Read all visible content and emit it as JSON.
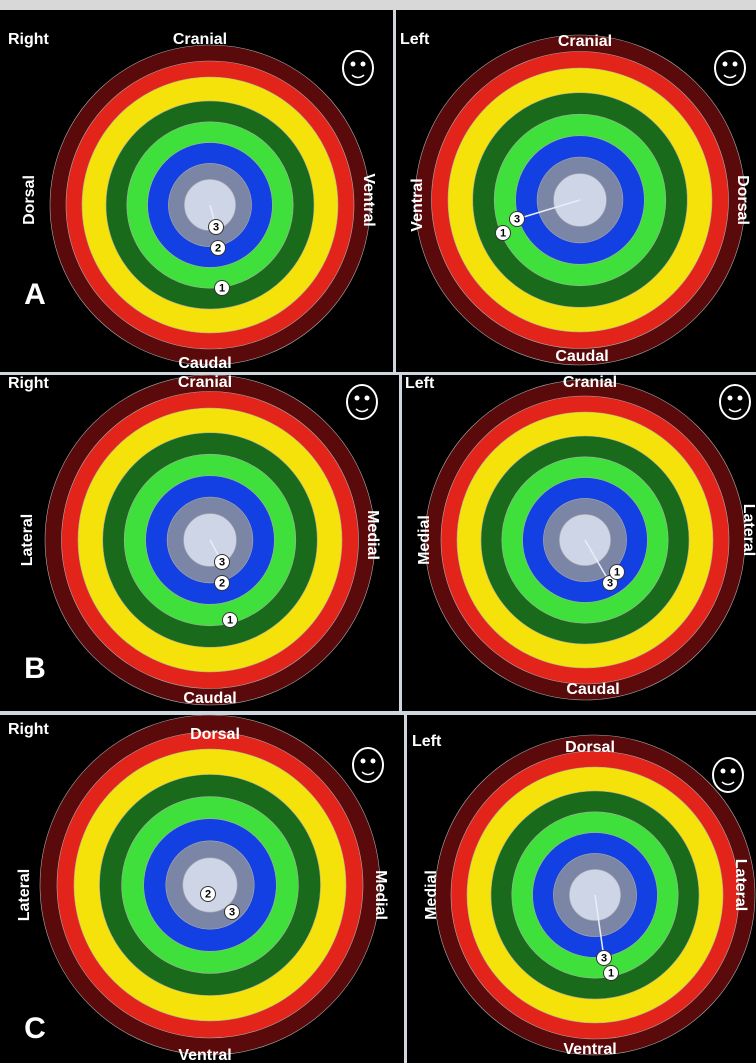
{
  "panels": [
    {
      "letter": "A",
      "side": "Right",
      "top": "Cranial",
      "bottom": "Caudal",
      "left": "Dorsal",
      "right": "Ventral",
      "markers": [
        "3",
        "2",
        "1"
      ]
    },
    {
      "side": "Left",
      "top": "Cranial",
      "bottom": "Caudal",
      "left": "Ventral",
      "right": "Dorsal",
      "markers": [
        "3",
        "1"
      ]
    },
    {
      "letter": "B",
      "side": "Right",
      "top": "Cranial",
      "bottom": "Caudal",
      "left": "Lateral",
      "right": "Medial",
      "markers": [
        "3",
        "2",
        "1"
      ]
    },
    {
      "side": "Left",
      "top": "Cranial",
      "bottom": "Caudal",
      "left": "Medial",
      "right": "Lateral",
      "markers": [
        "3",
        "1"
      ]
    },
    {
      "letter": "C",
      "side": "Right",
      "top": "Dorsal",
      "bottom": "Ventral",
      "left": "Lateral",
      "right": "Medial",
      "markers": [
        "2",
        "3"
      ]
    },
    {
      "side": "Left",
      "top": "Dorsal",
      "bottom": "Ventral",
      "left": "Medial",
      "right": "Lateral",
      "markers": [
        "3",
        "1"
      ]
    }
  ]
}
